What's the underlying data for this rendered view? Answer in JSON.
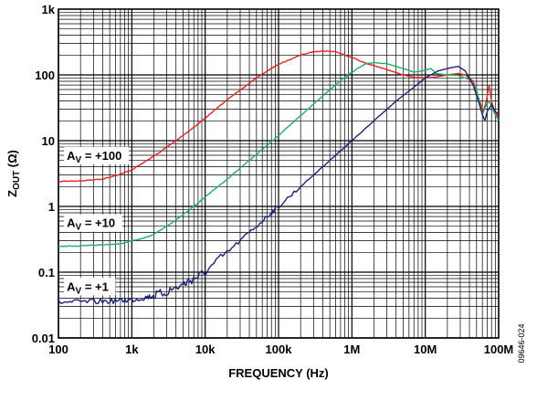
{
  "chart_data": {
    "type": "line",
    "xlabel": "FREQUENCY (Hz)",
    "ylabel": "Z_OUT (Ω)",
    "xscale": "log",
    "yscale": "log",
    "xlim": [
      100,
      100000000
    ],
    "ylim": [
      0.01,
      1000
    ],
    "grid": true,
    "x_ticks": [
      {
        "value": 100,
        "label": "100"
      },
      {
        "value": 1000,
        "label": "1k"
      },
      {
        "value": 10000,
        "label": "10k"
      },
      {
        "value": 100000,
        "label": "100k"
      },
      {
        "value": 1000000,
        "label": "1M"
      },
      {
        "value": 10000000,
        "label": "10M"
      },
      {
        "value": 100000000,
        "label": "100M"
      }
    ],
    "y_ticks": [
      {
        "value": 0.01,
        "label": "0.01"
      },
      {
        "value": 0.1,
        "label": "0.1"
      },
      {
        "value": 1,
        "label": "1"
      },
      {
        "value": 10,
        "label": "10"
      },
      {
        "value": 100,
        "label": "100"
      },
      {
        "value": 1000,
        "label": "1k"
      }
    ],
    "series": [
      {
        "name": "A_V = +100",
        "label_main": "A",
        "label_sub": "V",
        "label_rest": " = +100",
        "color": "#e8231e",
        "label_anchor": {
          "x": 130,
          "y": 5.3
        },
        "points": [
          [
            100,
            2.4
          ],
          [
            200,
            2.45
          ],
          [
            400,
            2.6
          ],
          [
            700,
            3.1
          ],
          [
            1000,
            3.6
          ],
          [
            2000,
            5.8
          ],
          [
            4000,
            10
          ],
          [
            7000,
            16
          ],
          [
            10000,
            22
          ],
          [
            20000,
            42
          ],
          [
            40000,
            75
          ],
          [
            70000,
            115
          ],
          [
            100000,
            145
          ],
          [
            200000,
            200
          ],
          [
            300000,
            225
          ],
          [
            400000,
            232
          ],
          [
            600000,
            225
          ],
          [
            1000000,
            185
          ],
          [
            1500000,
            152
          ],
          [
            2000000,
            138
          ],
          [
            3000000,
            120
          ],
          [
            5000000,
            100
          ],
          [
            7000000,
            92
          ],
          [
            10000000,
            90
          ],
          [
            14000000,
            93
          ],
          [
            20000000,
            100
          ],
          [
            28000000,
            105
          ],
          [
            35000000,
            100
          ],
          [
            45000000,
            80
          ],
          [
            55000000,
            40
          ],
          [
            62000000,
            28
          ],
          [
            68000000,
            40
          ],
          [
            74000000,
            70
          ],
          [
            80000000,
            40
          ],
          [
            88000000,
            28
          ],
          [
            100000000,
            22
          ]
        ]
      },
      {
        "name": "A_V = +10",
        "label_main": "A",
        "label_sub": "V",
        "label_rest": " = +10",
        "color": "#1fae6b",
        "label_anchor": {
          "x": 130,
          "y": 0.5
        },
        "points": [
          [
            100,
            0.25
          ],
          [
            200,
            0.25
          ],
          [
            400,
            0.26
          ],
          [
            700,
            0.27
          ],
          [
            1000,
            0.3
          ],
          [
            1500,
            0.33
          ],
          [
            2000,
            0.38
          ],
          [
            3000,
            0.5
          ],
          [
            5000,
            0.75
          ],
          [
            7000,
            1.0
          ],
          [
            10000,
            1.4
          ],
          [
            20000,
            2.6
          ],
          [
            40000,
            5
          ],
          [
            70000,
            8.5
          ],
          [
            100000,
            12
          ],
          [
            200000,
            24
          ],
          [
            400000,
            48
          ],
          [
            700000,
            82
          ],
          [
            1000000,
            110
          ],
          [
            1500000,
            145
          ],
          [
            2000000,
            155
          ],
          [
            3000000,
            148
          ],
          [
            5000000,
            125
          ],
          [
            7000000,
            110
          ],
          [
            9000000,
            115
          ],
          [
            12000000,
            125
          ],
          [
            14000000,
            105
          ],
          [
            20000000,
            100
          ],
          [
            28000000,
            98
          ],
          [
            40000000,
            85
          ],
          [
            50000000,
            60
          ],
          [
            60000000,
            25
          ],
          [
            68000000,
            35
          ],
          [
            75000000,
            40
          ],
          [
            85000000,
            28
          ],
          [
            100000000,
            20
          ]
        ]
      },
      {
        "name": "A_V = +1",
        "label_main": "A",
        "label_sub": "V",
        "label_rest": " = +1",
        "color": "#1b237e",
        "label_anchor": {
          "x": 130,
          "y": 0.054
        },
        "noisy": true,
        "points": [
          [
            100,
            0.035
          ],
          [
            200,
            0.035
          ],
          [
            400,
            0.036
          ],
          [
            700,
            0.037
          ],
          [
            1000,
            0.038
          ],
          [
            1500,
            0.041
          ],
          [
            2000,
            0.044
          ],
          [
            3000,
            0.05
          ],
          [
            5000,
            0.065
          ],
          [
            7000,
            0.08
          ],
          [
            10000,
            0.1
          ],
          [
            20000,
            0.2
          ],
          [
            40000,
            0.4
          ],
          [
            70000,
            0.7
          ],
          [
            100000,
            1.0
          ],
          [
            200000,
            2
          ],
          [
            400000,
            4
          ],
          [
            700000,
            7
          ],
          [
            1000000,
            10
          ],
          [
            2000000,
            20
          ],
          [
            4000000,
            40
          ],
          [
            7000000,
            65
          ],
          [
            10000000,
            90
          ],
          [
            15000000,
            115
          ],
          [
            20000000,
            125
          ],
          [
            28000000,
            135
          ],
          [
            35000000,
            115
          ],
          [
            45000000,
            70
          ],
          [
            55000000,
            35
          ],
          [
            60000000,
            25
          ],
          [
            65000000,
            20
          ],
          [
            70000000,
            28
          ],
          [
            80000000,
            35
          ],
          [
            90000000,
            28
          ],
          [
            100000000,
            25
          ]
        ]
      }
    ]
  },
  "figure_id": "09646-024"
}
